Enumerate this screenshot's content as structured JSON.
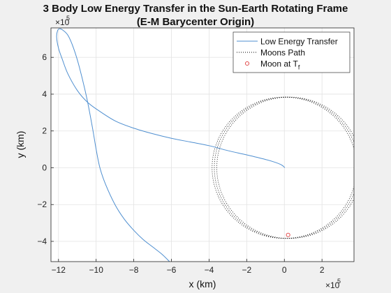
{
  "chart_data": {
    "type": "line",
    "title": [
      "3 Body Low Energy Transfer in the Sun-Earth Rotating Frame",
      "(E-M Barycenter Origin)"
    ],
    "xlabel": "x (km)",
    "ylabel": "y (km)",
    "x_exponent": "×10",
    "x_exponent_power": "5",
    "y_exponent": "×10",
    "y_exponent_power": "5",
    "xlim": [
      -12.4,
      3.7
    ],
    "ylim": [
      -5.1,
      7.6
    ],
    "xticks": [
      -12,
      -10,
      -8,
      -6,
      -4,
      -2,
      0,
      2
    ],
    "yticks": [
      -4,
      -2,
      0,
      2,
      4,
      6
    ],
    "grid": true,
    "legend_position": "top-right",
    "series": [
      {
        "name": "Low Energy Transfer",
        "color": "#4f8fd0",
        "style": "solid",
        "x": [
          0.02,
          -0.05,
          -0.2,
          -0.5,
          -1.0,
          -2.0,
          -3.0,
          -4.0,
          -5.0,
          -6.0,
          -7.0,
          -8.0,
          -9.0,
          -10.0,
          -10.5,
          -11.0,
          -11.5,
          -11.8,
          -12.0,
          -12.1,
          -12.05,
          -11.95,
          -11.8,
          -11.5,
          -11.2,
          -10.9,
          -10.5,
          -10.2,
          -10.0,
          -9.8,
          -9.5,
          -9.0,
          -8.5,
          -8.0,
          -7.5,
          -7.0,
          -6.5,
          -6.1
        ],
        "y": [
          0.0,
          0.08,
          0.18,
          0.3,
          0.45,
          0.7,
          0.93,
          1.2,
          1.4,
          1.6,
          1.85,
          2.15,
          2.55,
          3.2,
          3.6,
          4.2,
          5.1,
          5.9,
          6.5,
          7.1,
          7.45,
          7.55,
          7.5,
          7.2,
          6.5,
          5.5,
          3.8,
          2.2,
          1.0,
          0.0,
          -0.9,
          -2.0,
          -2.8,
          -3.4,
          -3.9,
          -4.3,
          -4.7,
          -5.1
        ]
      },
      {
        "name": "Moons Path",
        "color": "#000000",
        "style": "dotted",
        "center": [
          0.0,
          0.0
        ],
        "radius": 3.84,
        "offsets": [
          0.0,
          0.12,
          0.25
        ]
      },
      {
        "name": "Moon at T",
        "name_subscript": "f",
        "color": "#e04040",
        "style": "marker",
        "marker": "circle",
        "x": [
          0.2
        ],
        "y": [
          -3.65
        ]
      }
    ]
  }
}
